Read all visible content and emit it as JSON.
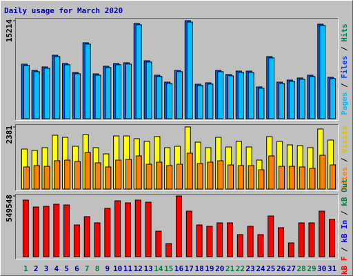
{
  "title": "Daily usage for March 2020",
  "legend_separator": "/",
  "categories": [
    "1",
    "2",
    "3",
    "4",
    "5",
    "6",
    "7",
    "8",
    "9",
    "10",
    "11",
    "12",
    "13",
    "14",
    "15",
    "16",
    "17",
    "18",
    "19",
    "20",
    "21",
    "22",
    "23",
    "24",
    "25",
    "26",
    "27",
    "28",
    "29",
    "30",
    "31"
  ],
  "category_colors": [
    "#008040",
    "#0000a0",
    "#0000a0",
    "#0000a0",
    "#0000a0",
    "#0000a0",
    "#008040",
    "#008040",
    "#0000a0",
    "#0000a0",
    "#0000a0",
    "#0000a0",
    "#0000a0",
    "#008040",
    "#008040",
    "#0000a0",
    "#0000a0",
    "#0000a0",
    "#0000a0",
    "#0000a0",
    "#008040",
    "#008040",
    "#0000a0",
    "#0000a0",
    "#0000a0",
    "#0000a0",
    "#0000a0",
    "#008040",
    "#008040",
    "#0000a0",
    "#0000a0"
  ],
  "chart_data": [
    {
      "type": "bar",
      "ylim": [
        0,
        15214
      ],
      "yticks": [
        15214
      ],
      "legend": [
        {
          "text": "Pages",
          "color": "#00c0ff"
        },
        {
          "text": "Files",
          "color": "#0040ff"
        },
        {
          "text": "Hits",
          "color": "#00805c"
        }
      ],
      "series": [
        {
          "color": "#0060ff",
          "values": [
            8464,
            7500,
            8036,
            9857,
            8571,
            7179,
            11786,
            6964,
            8143,
            8571,
            8679,
            14786,
            9000,
            6750,
            5679,
            7500,
            15214,
            5357,
            5571,
            7500,
            6857,
            7393,
            7393,
            4929,
            9643,
            5679,
            6000,
            6321,
            6750,
            14679,
            6429
          ]
        },
        {
          "color": "#00c0ff",
          "values": [
            8260,
            7300,
            7830,
            9650,
            8370,
            6980,
            11580,
            6760,
            7940,
            8370,
            8480,
            14580,
            8800,
            6550,
            5480,
            7300,
            15000,
            5160,
            5370,
            7300,
            6660,
            7190,
            7190,
            4730,
            9440,
            5480,
            5800,
            6120,
            6550,
            14470,
            6230
          ]
        }
      ]
    },
    {
      "type": "bar",
      "ylim": [
        0,
        2381
      ],
      "yticks": [
        2381
      ],
      "legend": [
        {
          "text": "Sites",
          "color": "#ff8000"
        },
        {
          "text": "Visits",
          "color": "#e0c000"
        }
      ],
      "series": [
        {
          "color": "#ffff00",
          "values": [
            1534,
            1482,
            1587,
            2064,
            1984,
            1640,
            2090,
            1587,
            1349,
            2037,
            2037,
            1931,
            1826,
            2011,
            1587,
            1640,
            2381,
            1799,
            1587,
            1984,
            1614,
            1826,
            1614,
            1111,
            2011,
            1826,
            1693,
            1667,
            1587,
            2302,
            1878
          ]
        },
        {
          "color": "#ff8000",
          "values": [
            847,
            900,
            873,
            1085,
            1111,
            1058,
            1402,
            1005,
            847,
            1111,
            1138,
            1270,
            953,
            1032,
            900,
            953,
            1376,
            979,
            1032,
            1085,
            926,
            900,
            900,
            741,
            1270,
            873,
            873,
            847,
            794,
            1297,
            926
          ]
        }
      ]
    },
    {
      "type": "bar",
      "ylim": [
        0,
        549548
      ],
      "yticks": [
        549548
      ],
      "legend": [
        {
          "text": "kB F",
          "color": "#ff0000"
        },
        {
          "text": "kB In",
          "color": "#0000ff"
        },
        {
          "text": "kB Out",
          "color": "#008040"
        }
      ],
      "series": [
        {
          "color": "#ff0000",
          "values": [
            512090,
            449640,
            455885,
            474620,
            468375,
            287270,
            362210,
            306005,
            437150,
            505845,
            487110,
            512090,
            493355,
            231065,
            118655,
            549548,
            412170,
            287270,
            274780,
            306005,
            306005,
            199840,
            274780,
            199840,
            368455,
            262290,
            124900,
            306005,
            306005,
            412170,
            337230
          ]
        }
      ]
    }
  ]
}
